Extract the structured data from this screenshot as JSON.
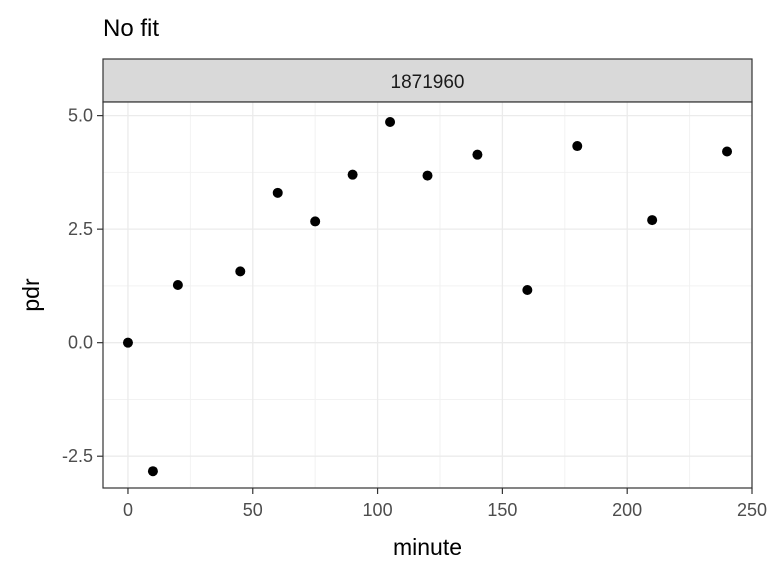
{
  "chart_data": {
    "type": "scatter",
    "title": "No fit",
    "facet_label": "1871960",
    "xlabel": "minute",
    "ylabel": "pdr",
    "xlim": [
      -10,
      250
    ],
    "ylim": [
      -3.2,
      5.3
    ],
    "x_ticks": [
      0,
      50,
      100,
      150,
      200,
      250
    ],
    "y_ticks": [
      -2.5,
      0.0,
      2.5,
      5.0
    ],
    "x_tick_labels": [
      "0",
      "50",
      "100",
      "150",
      "200",
      "250"
    ],
    "y_tick_labels": [
      "-2.5",
      "0.0",
      "2.5",
      "5.0"
    ],
    "grid": true,
    "point_color": "#000000",
    "points": [
      {
        "x": 0,
        "y": 0.0
      },
      {
        "x": 10,
        "y": -2.83
      },
      {
        "x": 20,
        "y": 1.27
      },
      {
        "x": 45,
        "y": 1.57
      },
      {
        "x": 60,
        "y": 3.3
      },
      {
        "x": 75,
        "y": 2.67
      },
      {
        "x": 90,
        "y": 3.7
      },
      {
        "x": 105,
        "y": 4.86
      },
      {
        "x": 120,
        "y": 3.68
      },
      {
        "x": 140,
        "y": 4.14
      },
      {
        "x": 160,
        "y": 1.16
      },
      {
        "x": 180,
        "y": 4.33
      },
      {
        "x": 210,
        "y": 2.7
      },
      {
        "x": 240,
        "y": 4.21
      }
    ]
  }
}
